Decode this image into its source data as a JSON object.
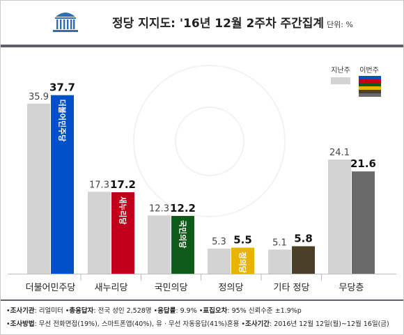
{
  "header": {
    "title": "정당 지지도: '16년 12월 2주차 주간집계",
    "unit": "단위: %"
  },
  "legend": {
    "prev": "지난주",
    "curr": "이번주"
  },
  "colors": {
    "prev_bar": "#d3d3d3",
    "minjoo": "#0050c8",
    "saenuri": "#c0001a",
    "kookmin": "#0e5a18",
    "justice": "#e8b400",
    "other": "#4a4028",
    "none": "#6a6a6a"
  },
  "chart_data": {
    "type": "bar",
    "categories": [
      "더불어민주당",
      "새누리당",
      "국민의당",
      "정의당",
      "기타 정당",
      "무당층"
    ],
    "series": [
      {
        "name": "지난주",
        "values": [
          35.9,
          17.3,
          12.3,
          5.3,
          5.1,
          24.1
        ]
      },
      {
        "name": "이번주",
        "values": [
          37.7,
          17.2,
          12.2,
          5.5,
          5.8,
          21.6
        ]
      }
    ],
    "bar_text": [
      "더불어민주당",
      "새누리당",
      "국민의당",
      "정의당",
      "",
      ""
    ],
    "title": "정당 지지도: '16년 12월 2주차 주간집계",
    "ylim": [
      0,
      40
    ],
    "grid": false,
    "legend_position": "top-right"
  },
  "footer": {
    "line1": [
      {
        "label": "조사기관",
        "text": ": 리얼미터 "
      },
      {
        "label": "총응답자",
        "text": ": 전국 성인 2,528명 "
      },
      {
        "label": "응답률",
        "text": ": 9.9% "
      },
      {
        "label": "표집오차",
        "text": ": 95% 신뢰수준 ±1.9%p"
      }
    ],
    "line2": [
      {
        "label": "조사방법",
        "text": ": 무선 전화면접(19%), 스마트폰앱(40%), 유 · 무선 자동응답(41%)혼용 "
      },
      {
        "label": "조사기간",
        "text": ": 2016년 12월 12일(월)~12월 16일(금)"
      }
    ]
  }
}
